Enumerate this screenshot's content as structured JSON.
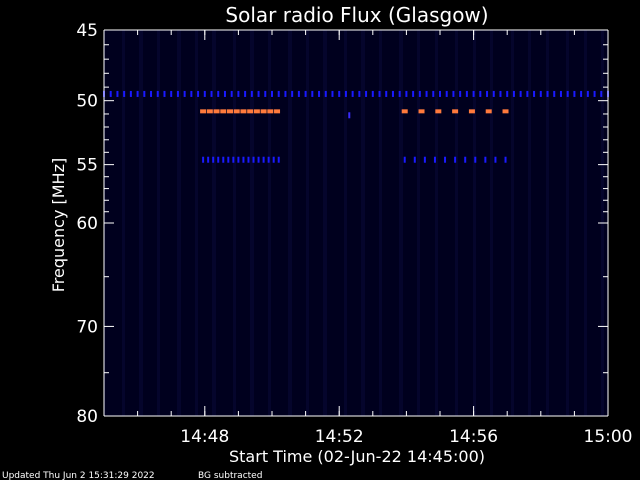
{
  "footer": {
    "updated": "Updated Thu Jun  2 15:31:29 2022",
    "note": "BG subtracted"
  },
  "chart_data": {
    "type": "heatmap",
    "title": "Solar radio Flux (Glasgow)",
    "xlabel": "Start Time (02-Jun-22 14:45:00)",
    "ylabel": "Frequency [MHz]",
    "x_tick_labels": [
      "14:48",
      "14:52",
      "14:56",
      "15:00"
    ],
    "x_ticks_min": [
      3,
      7,
      11,
      15
    ],
    "x_minor_step_min": 1,
    "xlim_min": [
      0,
      15
    ],
    "y_tick_labels": [
      "45",
      "50",
      "55",
      "60",
      "70",
      "80"
    ],
    "y_ticks": [
      45,
      50,
      55,
      60,
      70,
      80
    ],
    "y_minor_ticks": [
      46,
      47,
      48,
      49,
      51,
      52,
      53,
      54,
      56,
      57,
      58,
      59,
      65,
      75
    ],
    "ylim": [
      45,
      80
    ],
    "y_scale": "log",
    "y_inverted": true,
    "background": "#00001e",
    "colors": {
      "weak": "#1a1aff",
      "medium": "#3a2cff",
      "strong": "#ff7a3c"
    },
    "features": [
      {
        "freq": 49.5,
        "t_start": 0.0,
        "t_end": 15.0,
        "step": 0.2,
        "level": "weak"
      },
      {
        "freq": 50.8,
        "t_start": 2.95,
        "t_end": 5.2,
        "step": 0.2,
        "level": "strong"
      },
      {
        "freq": 50.8,
        "t_start": 8.95,
        "t_end": 12.2,
        "step": 0.5,
        "level": "strong"
      },
      {
        "freq": 51.1,
        "t_start": 7.3,
        "t_end": 7.3,
        "step": 0.2,
        "level": "medium"
      },
      {
        "freq": 54.6,
        "t_start": 2.95,
        "t_end": 5.3,
        "step": 0.15,
        "level": "weak"
      },
      {
        "freq": 54.6,
        "t_start": 8.95,
        "t_end": 12.2,
        "step": 0.3,
        "level": "weak"
      }
    ]
  }
}
